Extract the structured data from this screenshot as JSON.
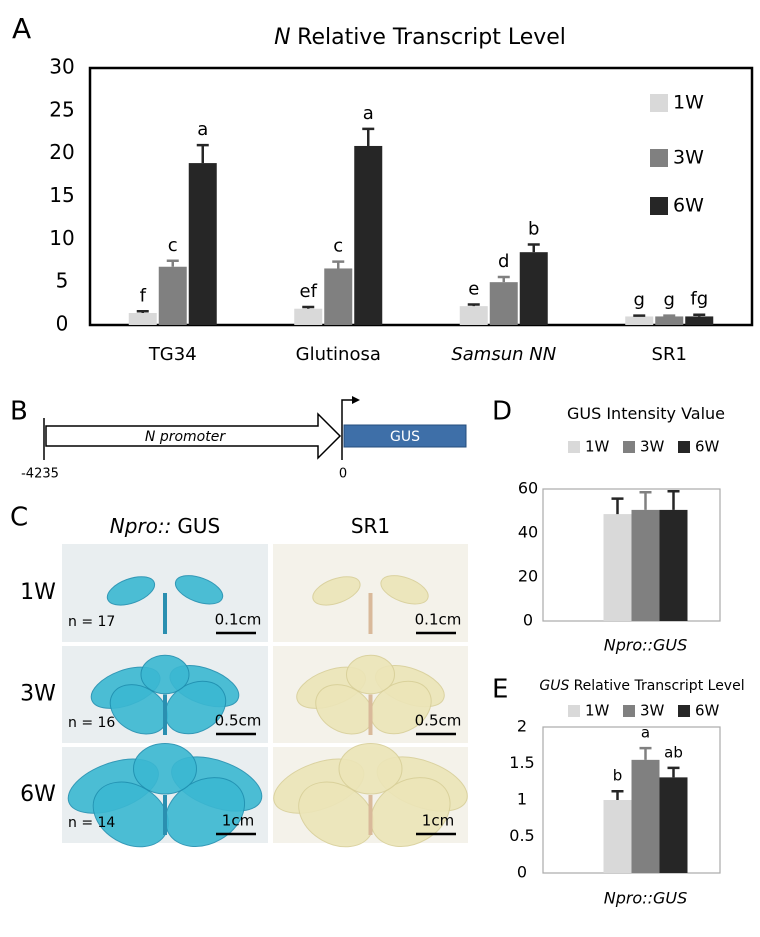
{
  "chart_data": [
    {
      "type": "bar",
      "title": [
        {
          "text": "N",
          "italic": true
        },
        {
          "text": "Relative Transcript Level",
          "italic": false
        }
      ],
      "categories": [
        "TG34",
        "Glutinosa",
        "Samsun NN",
        "SR1"
      ],
      "categories_italic": [
        false,
        false,
        true,
        false
      ],
      "series": [
        {
          "name": "1W",
          "color": "#d9d9d9",
          "values": [
            1.4,
            1.9,
            2.2,
            1.0
          ],
          "errors": [
            0.2,
            0.2,
            0.2,
            0.1
          ],
          "letters": [
            "f",
            "ef",
            "e",
            "g"
          ]
        },
        {
          "name": "3W",
          "color": "#808080",
          "values": [
            6.8,
            6.6,
            5.0,
            1.0
          ],
          "errors": [
            0.7,
            0.8,
            0.6,
            0.1
          ],
          "letters": [
            "c",
            "c",
            "d",
            "g"
          ]
        },
        {
          "name": "6W",
          "color": "#262626",
          "values": [
            18.9,
            20.9,
            8.5,
            1.0
          ],
          "errors": [
            2.1,
            2.0,
            0.9,
            0.2
          ],
          "letters": [
            "a",
            "a",
            "b",
            "fg"
          ]
        }
      ],
      "ylim": [
        0,
        30
      ],
      "yticks": [
        0,
        5,
        10,
        15,
        20,
        25,
        30
      ],
      "grid": false,
      "legend": "right"
    },
    {
      "type": "bar",
      "title": [
        {
          "text": "GUS Intensity Value",
          "italic": false
        }
      ],
      "categories": [
        "Npro::GUS"
      ],
      "categories_italic": [
        true
      ],
      "series": [
        {
          "name": "1W",
          "color": "#d9d9d9",
          "values": [
            48.6
          ],
          "errors": [
            7
          ]
        },
        {
          "name": "3W",
          "color": "#808080",
          "values": [
            50.5
          ],
          "errors": [
            8
          ]
        },
        {
          "name": "6W",
          "color": "#262626",
          "values": [
            50.5
          ],
          "errors": [
            8.5
          ]
        }
      ],
      "ylim": [
        0,
        60
      ],
      "yticks": [
        0,
        20,
        40,
        60
      ],
      "grid": false,
      "legend": "top"
    },
    {
      "type": "bar",
      "title": [
        {
          "text": "GUS",
          "italic": true
        },
        {
          "text": "Relative Transcript Level",
          "italic": false
        }
      ],
      "categories": [
        "Npro::GUS"
      ],
      "categories_italic": [
        true
      ],
      "series": [
        {
          "name": "1W",
          "color": "#d9d9d9",
          "values": [
            1.0
          ],
          "errors": [
            0.12
          ],
          "letters": [
            "b"
          ]
        },
        {
          "name": "3W",
          "color": "#808080",
          "values": [
            1.55
          ],
          "errors": [
            0.16
          ],
          "letters": [
            "a"
          ]
        },
        {
          "name": "6W",
          "color": "#262626",
          "values": [
            1.31
          ],
          "errors": [
            0.13
          ],
          "letters": [
            "ab"
          ]
        }
      ],
      "ylim": [
        0,
        2
      ],
      "yticks": [
        0,
        0.5,
        1,
        1.5,
        2
      ],
      "grid": false,
      "legend": "top"
    }
  ],
  "panel_labels": [
    "A",
    "B",
    "C",
    "D",
    "E"
  ],
  "diagram": {
    "promoter": "N promoter",
    "gene": "GUS",
    "start": "-4235",
    "end": "0"
  },
  "photos": {
    "columns": [
      [
        {
          "text": "Npro::",
          "italic": true
        },
        {
          "text": "GUS",
          "italic": false
        }
      ],
      [
        {
          "text": "SR1",
          "italic": false
        }
      ]
    ],
    "rows": [
      "1W",
      "3W",
      "6W"
    ],
    "counts": [
      "n = 17",
      "n = 16",
      "n = 14"
    ],
    "scales": [
      [
        "0.1cm",
        "0.1cm"
      ],
      [
        "0.5cm",
        "0.5cm"
      ],
      [
        "1cm",
        "1cm"
      ]
    ]
  }
}
